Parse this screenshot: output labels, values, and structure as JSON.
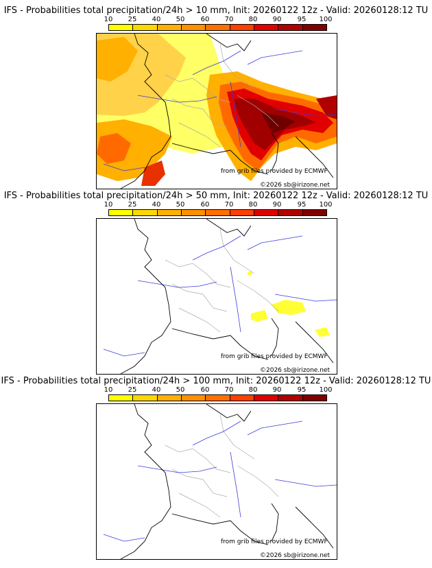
{
  "colorbar": {
    "labels": [
      "10",
      "25",
      "40",
      "50",
      "60",
      "70",
      "80",
      "90",
      "95",
      "100"
    ],
    "colors": [
      "#ffff00",
      "#ffd700",
      "#ffb000",
      "#ff9000",
      "#ff7000",
      "#ff4000",
      "#e00000",
      "#b00000",
      "#800000"
    ]
  },
  "panels": [
    {
      "title": "IFS - Probabilities total precipitation/24h > 10 mm, Init: 20260122 12z - Valid: 20260128:12 TU",
      "threshold_mm": 10,
      "ecmwf_credit": "from grib files provided by ECMWF",
      "copyright": "©2026 sb@irizone.net"
    },
    {
      "title": "IFS - Probabilities total precipitation/24h > 50 mm, Init: 20260122 12z - Valid: 20260128:12 TU",
      "threshold_mm": 50,
      "ecmwf_credit": "from grib files provided by ECMWF",
      "copyright": "©2026 sb@irizone.net"
    },
    {
      "title": "IFS - Probabilities total precipitation/24h > 100 mm, Init: 20260122 12z - Valid: 20260128:12 TU",
      "threshold_mm": 100,
      "ecmwf_credit": "from grib files provided by ECMWF",
      "copyright": "©2026 sb@irizone.net"
    }
  ],
  "colors": {
    "coastline": "#000000",
    "rivers": "#3a3adc",
    "borders": "#aaaaaa",
    "sea": "#ffffff"
  }
}
